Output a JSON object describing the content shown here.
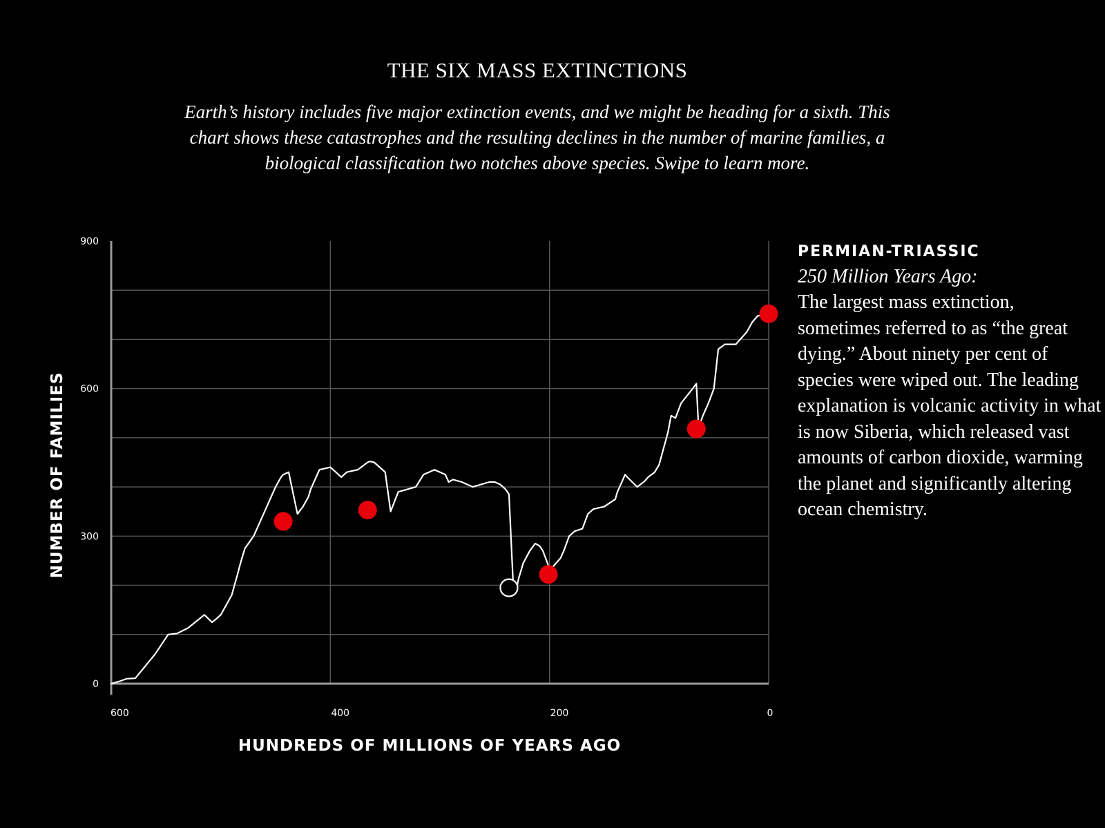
{
  "header": {
    "title": "THE SIX MASS EXTINCTIONS",
    "subtitle": "Earth’s history includes five major extinction events, and we might be heading for a sixth. This chart shows these catastrophes and the resulting declines in the number of marine families, a biological classification two notches above species. Swipe to learn more."
  },
  "colors": {
    "background": "#000000",
    "line": "#ffffff",
    "grid": "#555555",
    "axis": "#9a9a9a",
    "event_marker": "#e8000b"
  },
  "chart_data": {
    "type": "line",
    "title": "THE SIX MASS EXTINCTIONS",
    "xlabel": "HUNDREDS OF MILLIONS OF YEARS AGO",
    "ylabel": "NUMBER OF FAMILIES",
    "xlim": [
      600,
      0
    ],
    "ylim": [
      0,
      900
    ],
    "x_ticks": [
      600,
      400,
      200,
      0
    ],
    "x_tick_labels": [
      "600",
      "400",
      "200",
      "0"
    ],
    "y_ticks": [
      0,
      300,
      600,
      900
    ],
    "y_tick_labels": [
      "0",
      "300",
      "600",
      "900"
    ],
    "y_gridlines": [
      100,
      200,
      300,
      400,
      500,
      600,
      700,
      800
    ],
    "x_gridlines": [
      400,
      200,
      0
    ],
    "grid": true,
    "series": [
      {
        "x": [
          600,
          592,
          586,
          578,
          560,
          548,
          540,
          530,
          515,
          508,
          505,
          500,
          495,
          490,
          485,
          482,
          478,
          470,
          462,
          455,
          450,
          445,
          443,
          438,
          430,
          425,
          420,
          418,
          410,
          400,
          395,
          390,
          385,
          375,
          366,
          364,
          360,
          350,
          345,
          338,
          330,
          322,
          315,
          305,
          295,
          292,
          288,
          280,
          270,
          255,
          250,
          245,
          240,
          237,
          233,
          230,
          228,
          224,
          218,
          213,
          209,
          206,
          201,
          198,
          190,
          187,
          182,
          177,
          170,
          165,
          160,
          150,
          140,
          138,
          134,
          131,
          129,
          120,
          113,
          110,
          104,
          100,
          92,
          89,
          85,
          80,
          70,
          66,
          64,
          60,
          55,
          50,
          46,
          40,
          30,
          20,
          15,
          10,
          0
        ],
        "y": [
          0,
          5,
          10,
          11,
          60,
          100,
          102,
          113,
          140,
          125,
          130,
          140,
          160,
          180,
          220,
          245,
          275,
          300,
          340,
          375,
          400,
          420,
          425,
          430,
          345,
          360,
          380,
          395,
          435,
          440,
          430,
          420,
          430,
          435,
          450,
          452,
          450,
          430,
          350,
          390,
          395,
          400,
          425,
          435,
          425,
          410,
          415,
          410,
          400,
          410,
          410,
          405,
          395,
          385,
          195,
          195,
          215,
          245,
          270,
          285,
          280,
          270,
          240,
          235,
          255,
          270,
          300,
          310,
          315,
          345,
          355,
          360,
          375,
          390,
          410,
          425,
          420,
          400,
          412,
          420,
          430,
          445,
          510,
          545,
          540,
          570,
          598,
          610,
          520,
          545,
          570,
          600,
          680,
          690,
          690,
          715,
          735,
          748,
          750
        ]
      }
    ],
    "events": [
      {
        "x": 443,
        "y": 330,
        "style": "filled"
      },
      {
        "x": 366,
        "y": 353,
        "style": "filled"
      },
      {
        "x": 237,
        "y": 195,
        "style": "hollow"
      },
      {
        "x": 201,
        "y": 222,
        "style": "filled"
      },
      {
        "x": 66,
        "y": 518,
        "style": "filled"
      },
      {
        "x": 0,
        "y": 752,
        "style": "filled"
      }
    ]
  },
  "panel": {
    "heading": "PERMIAN-TRIASSIC",
    "date": "250 Million Years Ago:",
    "text": "The largest mass extinction, sometimes referred to as “the great dying.” About ninety per cent of species were wiped out. The leading explanation is volcanic activity in what is now Siberia, which released vast amounts of carbon dioxide, warming the planet and significantly altering ocean chemistry."
  }
}
